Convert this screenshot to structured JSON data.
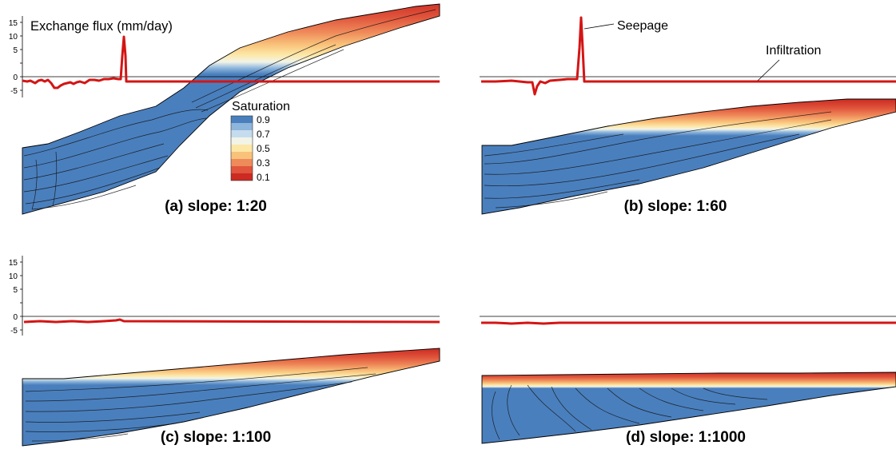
{
  "figure": {
    "ylabel": "Exchange flux (mm/day)",
    "yticks": [
      15,
      10,
      5,
      0,
      -5
    ],
    "annotations": {
      "seepage": "Seepage",
      "infiltration": "Infiltration"
    },
    "legend": {
      "title": "Saturation",
      "levels": [
        {
          "label": "0.9",
          "color": "#4a7fbd"
        },
        {
          "label": "",
          "color": "#8eb6dc"
        },
        {
          "label": "0.7",
          "color": "#c5dcee"
        },
        {
          "label": "",
          "color": "#f2f4e8"
        },
        {
          "label": "0.5",
          "color": "#fde7a6"
        },
        {
          "label": "",
          "color": "#f9c27a"
        },
        {
          "label": "0.3",
          "color": "#ef8a5a"
        },
        {
          "label": "",
          "color": "#e0553c"
        },
        {
          "label": "0.1",
          "color": "#cc2a22"
        }
      ]
    },
    "panels": [
      {
        "caption": "(a) slope: 1:20"
      },
      {
        "caption": "(b) slope: 1:60"
      },
      {
        "caption": "(c) slope: 1:100"
      },
      {
        "caption": "(d) slope: 1:1000"
      }
    ]
  },
  "colors": {
    "saturated": "#4a7fbd",
    "flux_line": "#d41515"
  }
}
